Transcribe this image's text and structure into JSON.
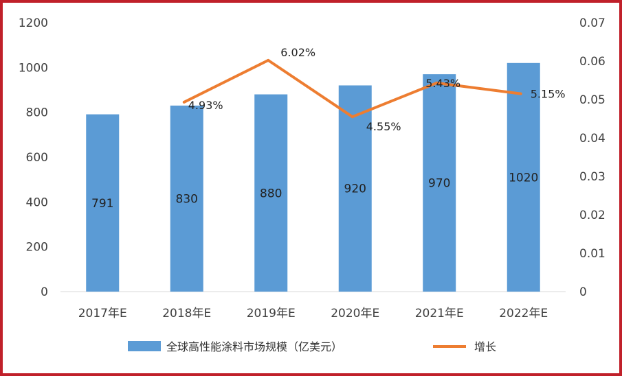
{
  "chart_data": {
    "type": "bar",
    "categories": [
      "2017年E",
      "2018年E",
      "2019年E",
      "2020年E",
      "2021年E",
      "2022年E"
    ],
    "series": [
      {
        "name": "全球高性能涂料市场规模（亿美元）",
        "type": "bar",
        "axis": "left",
        "values": [
          791,
          830,
          880,
          920,
          970,
          1020
        ],
        "labels": [
          "791",
          "830",
          "880",
          "920",
          "970",
          "1020"
        ]
      },
      {
        "name": "增长",
        "type": "line",
        "axis": "right",
        "values": [
          null,
          0.0493,
          0.0602,
          0.0455,
          0.0543,
          0.0515
        ],
        "labels": [
          "",
          "4.93%",
          "6.02%",
          "4.55%",
          "5.43%",
          "5.15%"
        ]
      }
    ],
    "y_left": {
      "ylim": [
        0,
        1200
      ],
      "ticks": [
        "0",
        "200",
        "400",
        "600",
        "800",
        "1000",
        "1200"
      ]
    },
    "y_right": {
      "ylim": [
        0,
        0.07
      ],
      "ticks": [
        "0",
        "0.01",
        "0.02",
        "0.03",
        "0.04",
        "0.05",
        "0.06",
        "0.07"
      ]
    },
    "grid": false,
    "legend_position": "bottom",
    "colors": {
      "bar": "#5b9bd5",
      "line": "#ed7d31",
      "frame": "#c0202a"
    }
  }
}
